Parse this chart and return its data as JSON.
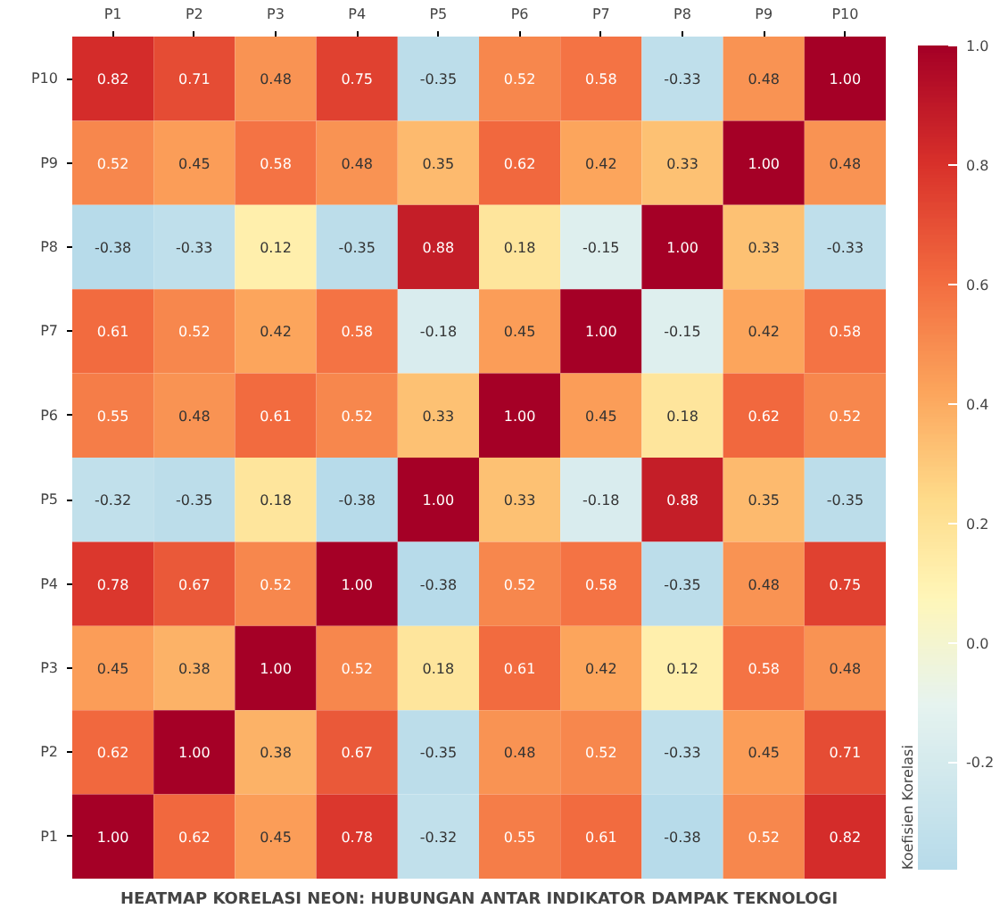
{
  "chart_data": {
    "type": "heatmap",
    "title": "HEATMAP KORELASI NEON: HUBUNGAN ANTAR INDIKATOR DAMPAK TEKNOLOGI",
    "clabel": "Koefisien Korelasi",
    "categories": [
      "P1",
      "P2",
      "P3",
      "P4",
      "P5",
      "P6",
      "P7",
      "P8",
      "P9",
      "P10"
    ],
    "y_categories": [
      "P10",
      "P9",
      "P8",
      "P7",
      "P6",
      "P5",
      "P4",
      "P3",
      "P2",
      "P1"
    ],
    "cells": [
      [
        0.82,
        0.71,
        0.48,
        0.75,
        -0.35,
        0.52,
        0.58,
        -0.33,
        0.48,
        1.0
      ],
      [
        0.52,
        0.45,
        0.58,
        0.48,
        0.35,
        0.62,
        0.42,
        0.33,
        1.0,
        0.48
      ],
      [
        -0.38,
        -0.33,
        0.12,
        -0.35,
        0.88,
        0.18,
        -0.15,
        1.0,
        0.33,
        -0.33
      ],
      [
        0.61,
        0.52,
        0.42,
        0.58,
        -0.18,
        0.45,
        1.0,
        -0.15,
        0.42,
        0.58
      ],
      [
        0.55,
        0.48,
        0.61,
        0.52,
        0.33,
        1.0,
        0.45,
        0.18,
        0.62,
        0.52
      ],
      [
        -0.32,
        -0.35,
        0.18,
        -0.38,
        1.0,
        0.33,
        -0.18,
        0.88,
        0.35,
        -0.35
      ],
      [
        0.78,
        0.67,
        0.52,
        1.0,
        -0.38,
        0.52,
        0.58,
        -0.35,
        0.48,
        0.75
      ],
      [
        0.45,
        0.38,
        1.0,
        0.52,
        0.18,
        0.61,
        0.42,
        0.12,
        0.58,
        0.48
      ],
      [
        0.62,
        1.0,
        0.38,
        0.67,
        -0.35,
        0.48,
        0.52,
        -0.33,
        0.45,
        0.71
      ],
      [
        1.0,
        0.62,
        0.45,
        0.78,
        -0.32,
        0.55,
        0.61,
        -0.38,
        0.52,
        0.82
      ]
    ],
    "cell_labels": [
      [
        "0.82",
        "0.71",
        "0.48",
        "0.75",
        "-0.35",
        "0.52",
        "0.58",
        "-0.33",
        "0.48",
        "1.00"
      ],
      [
        "0.52",
        "0.45",
        "0.58",
        "0.48",
        "0.35",
        "0.62",
        "0.42",
        "0.33",
        "1.00",
        "0.48"
      ],
      [
        "-0.38",
        "-0.33",
        "0.12",
        "-0.35",
        "0.88",
        "0.18",
        "-0.15",
        "1.00",
        "0.33",
        "-0.33"
      ],
      [
        "0.61",
        "0.52",
        "0.42",
        "0.58",
        "-0.18",
        "0.45",
        "1.00",
        "-0.15",
        "0.42",
        "0.58"
      ],
      [
        "0.55",
        "0.48",
        "0.61",
        "0.52",
        "0.33",
        "1.00",
        "0.45",
        "0.18",
        "0.62",
        "0.52"
      ],
      [
        "-0.32",
        "-0.35",
        "0.18",
        "-0.38",
        "1.00",
        "0.33",
        "-0.18",
        "0.88",
        "0.35",
        "-0.35"
      ],
      [
        "0.78",
        "0.67",
        "0.52",
        "1.00",
        "-0.38",
        "0.52",
        "0.58",
        "-0.35",
        "0.48",
        "0.75"
      ],
      [
        "0.45",
        "0.38",
        "1.00",
        "0.52",
        "0.18",
        "0.61",
        "0.42",
        "0.12",
        "0.58",
        "0.48"
      ],
      [
        "0.62",
        "1.00",
        "0.38",
        "0.67",
        "-0.35",
        "0.48",
        "0.52",
        "-0.33",
        "0.45",
        "0.71"
      ],
      [
        "1.00",
        "0.62",
        "0.45",
        "0.78",
        "-0.32",
        "0.55",
        "0.61",
        "-0.38",
        "0.52",
        "0.82"
      ]
    ],
    "clim": [
      -0.38,
      1.0
    ],
    "cticks": [
      -0.2,
      {
        "value": 0,
        "label": "0.0"
      },
      0.2,
      0.4,
      0.6,
      0.8,
      {
        "value": 1,
        "label": "1.0"
      }
    ]
  }
}
